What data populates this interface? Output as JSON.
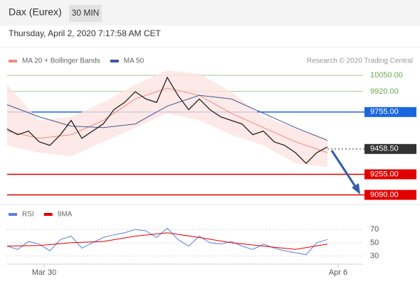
{
  "header": {
    "title": "Dax (Eurex)",
    "interval": "30 MIN",
    "timestamp": "Thursday, April 2, 2020 7:17:58 AM CET",
    "credit": "Research © 2020 Trading Central"
  },
  "chart_data": [
    {
      "type": "line",
      "xlim": [
        0,
        100
      ],
      "ylim": [
        9030,
        10170
      ],
      "series": [
        {
          "name": "MA 20 + Bollinger Bands",
          "color": "#f28b82",
          "band_color": "#fde3e1",
          "x": [
            0,
            9,
            18,
            27,
            36,
            45,
            54,
            63,
            72,
            81,
            90
          ],
          "values": [
            9602,
            9544,
            9573,
            9688,
            9860,
            9947,
            9889,
            9745,
            9630,
            9516,
            9429
          ],
          "upper": [
            9975,
            9688,
            9717,
            9832,
            9975,
            10090,
            10061,
            9918,
            9717,
            9630,
            9544
          ],
          "lower": [
            9487,
            9429,
            9400,
            9516,
            9630,
            9745,
            9688,
            9573,
            9487,
            9343,
            9314
          ]
        },
        {
          "name": "MA 50",
          "color": "#3d5a99",
          "x": [
            0,
            9,
            18,
            27,
            36,
            45,
            54,
            63,
            72,
            81,
            90
          ],
          "values": [
            9814,
            9717,
            9642,
            9630,
            9659,
            9803,
            9889,
            9860,
            9745,
            9630,
            9527
          ]
        },
        {
          "color": "#222222",
          "x": [
            0,
            3,
            6,
            9,
            12,
            15,
            18,
            21,
            24,
            27,
            30,
            33,
            36,
            39,
            42,
            45,
            48,
            51,
            54,
            57,
            60,
            63,
            66,
            69,
            72,
            75,
            78,
            81,
            84,
            87,
            90
          ],
          "values": [
            9619,
            9573,
            9602,
            9516,
            9487,
            9573,
            9688,
            9544,
            9602,
            9659,
            9774,
            9832,
            9918,
            9860,
            9832,
            10033,
            9889,
            9774,
            9860,
            9774,
            9717,
            9688,
            9659,
            9573,
            9602,
            9516,
            9487,
            9429,
            9343,
            9429,
            9475
          ]
        }
      ],
      "levels": [
        {
          "value": 10050,
          "label": "10050.00",
          "color": "#6aa84f",
          "boxed": false
        },
        {
          "value": 9920,
          "label": "9920.00",
          "color": "#6aa84f",
          "boxed": false
        },
        {
          "value": 9755,
          "label": "9755.00",
          "color": "#1a66e0",
          "boxed": true
        },
        {
          "value": 9458.5,
          "label": "9458.50",
          "color": "#333333",
          "boxed": true,
          "dashed": true
        },
        {
          "value": 9255,
          "label": "9255.00",
          "color": "#e00000",
          "boxed": true
        },
        {
          "value": 9090,
          "label": "9090.00",
          "color": "#e00000",
          "boxed": true
        }
      ]
    },
    {
      "type": "line",
      "xlim": [
        0,
        100
      ],
      "ylim": [
        20,
        82
      ],
      "yticks": [
        70,
        50,
        30
      ],
      "xticks": [
        {
          "value": 10.4,
          "label": "Mar 30"
        },
        {
          "value": 93,
          "label": "Apr 6"
        }
      ],
      "series": [
        {
          "name": "RSI",
          "color": "#5b7fd6",
          "x": [
            0,
            3,
            6,
            9,
            12,
            15,
            18,
            21,
            24,
            27,
            30,
            33,
            36,
            39,
            42,
            45,
            48,
            51,
            54,
            57,
            60,
            63,
            66,
            69,
            72,
            75,
            78,
            81,
            84,
            87,
            90
          ],
          "values": [
            45,
            40,
            52,
            48,
            38,
            55,
            60,
            42,
            50,
            58,
            62,
            65,
            70,
            68,
            58,
            72,
            55,
            45,
            60,
            50,
            48,
            52,
            45,
            40,
            48,
            42,
            38,
            35,
            32,
            50,
            55
          ]
        },
        {
          "name": "9MA",
          "color": "#e00000",
          "x": [
            0,
            9,
            18,
            27,
            36,
            45,
            54,
            63,
            72,
            81,
            90
          ],
          "values": [
            45,
            46,
            50,
            52,
            60,
            65,
            58,
            50,
            45,
            40,
            48
          ]
        }
      ]
    }
  ]
}
